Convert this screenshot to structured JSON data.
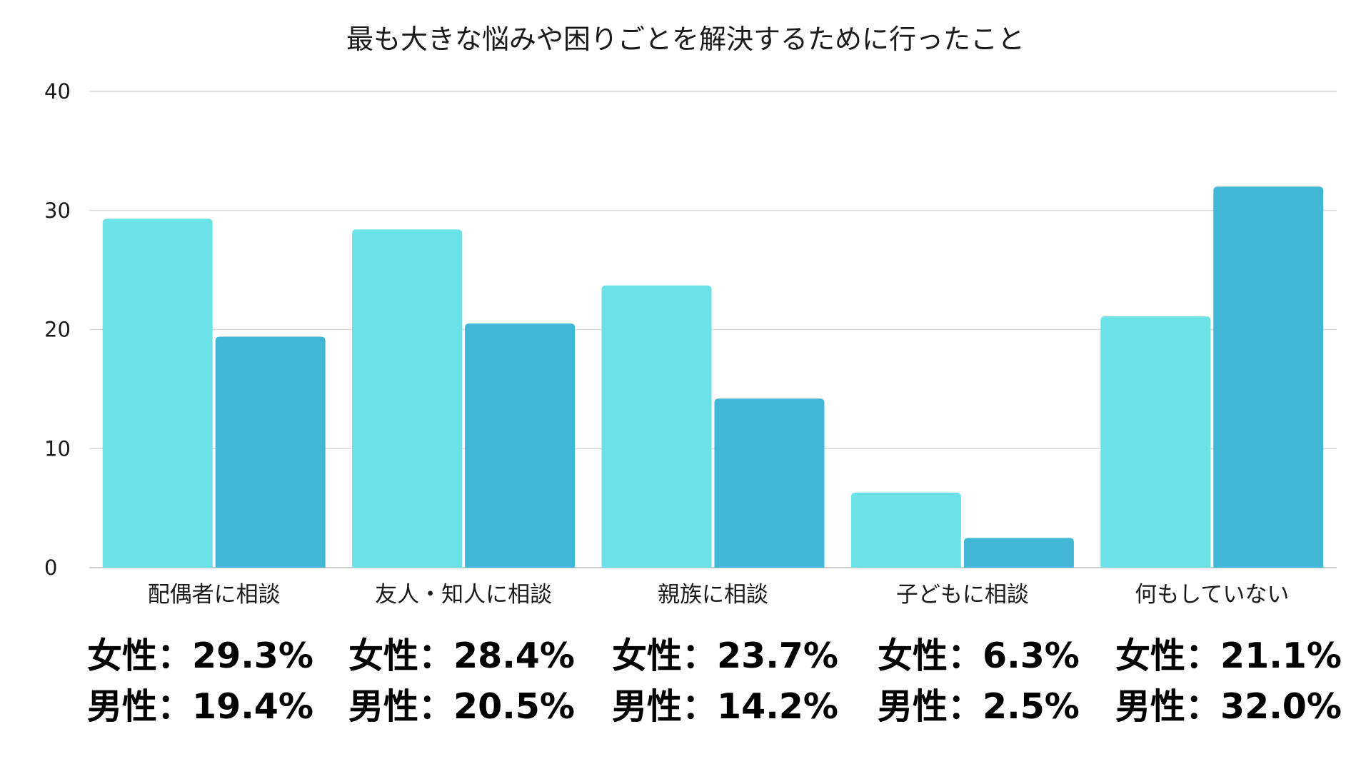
{
  "chart_data": {
    "type": "bar",
    "title": "最も大きな悩みや困りごとを解決するために行ったこと",
    "categories": [
      "配偶者に相談",
      "友人・知人に相談",
      "親族に相談",
      "子どもに相談",
      "何もしていない"
    ],
    "series": [
      {
        "values": [
          29.3,
          28.4,
          23.7,
          6.3,
          21.1
        ],
        "color": "#6be3e6"
      },
      {
        "values": [
          19.4,
          20.5,
          14.2,
          2.5,
          32.0
        ],
        "color": "#41b6d5"
      }
    ],
    "ylim": [
      0,
      40
    ],
    "yticks": [
      "0",
      "10",
      "20",
      "30",
      "40"
    ],
    "grid": true,
    "xlabel": "",
    "ylabel": ""
  },
  "annotations": {
    "female": [
      "女性：29.3%",
      "女性：28.4%",
      "女性：23.7%",
      "女性：6.3%",
      "女性：21.1%"
    ],
    "male": [
      "男性：19.4%",
      "男性：20.5%",
      "男性：14.2%",
      "男性：2.5%",
      "男性：32.0%"
    ]
  },
  "colors": {
    "gridline": "#d9d9d9",
    "axis": "#bdbdbd"
  }
}
